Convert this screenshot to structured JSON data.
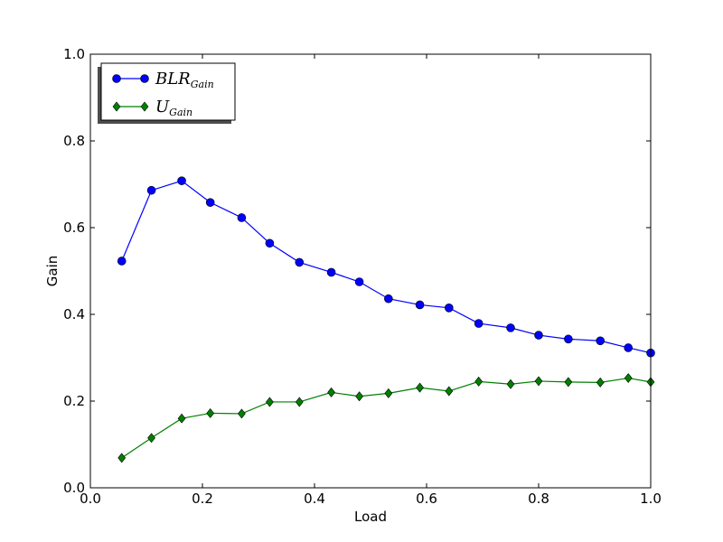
{
  "chart_data": {
    "type": "line",
    "xlabel": "Load",
    "ylabel": "Gain",
    "xlim": [
      0.0,
      1.0
    ],
    "ylim": [
      0.0,
      1.0
    ],
    "xticks": [
      "0.0",
      "0.2",
      "0.4",
      "0.6",
      "0.8",
      "1.0"
    ],
    "yticks": [
      "0.0",
      "0.2",
      "0.4",
      "0.6",
      "0.8",
      "1.0"
    ],
    "grid": false,
    "legend_position": "top-left",
    "x": [
      0.056,
      0.109,
      0.163,
      0.214,
      0.27,
      0.32,
      0.373,
      0.43,
      0.48,
      0.532,
      0.588,
      0.64,
      0.693,
      0.75,
      0.8,
      0.853,
      0.91,
      0.96,
      1.0
    ],
    "series": [
      {
        "name": "BLR",
        "name_sub": "Gain",
        "color": "#0000ff",
        "marker": "circle",
        "values": [
          0.523,
          0.686,
          0.708,
          0.658,
          0.623,
          0.564,
          0.52,
          0.497,
          0.475,
          0.436,
          0.422,
          0.415,
          0.379,
          0.369,
          0.352,
          0.343,
          0.339,
          0.323,
          0.311
        ]
      },
      {
        "name": "U",
        "name_sub": "Gain",
        "color": "#008000",
        "marker": "diamond",
        "values": [
          0.069,
          0.115,
          0.16,
          0.172,
          0.171,
          0.198,
          0.198,
          0.22,
          0.211,
          0.218,
          0.231,
          0.223,
          0.245,
          0.239,
          0.246,
          0.244,
          0.243,
          0.253,
          0.244
        ]
      }
    ]
  }
}
